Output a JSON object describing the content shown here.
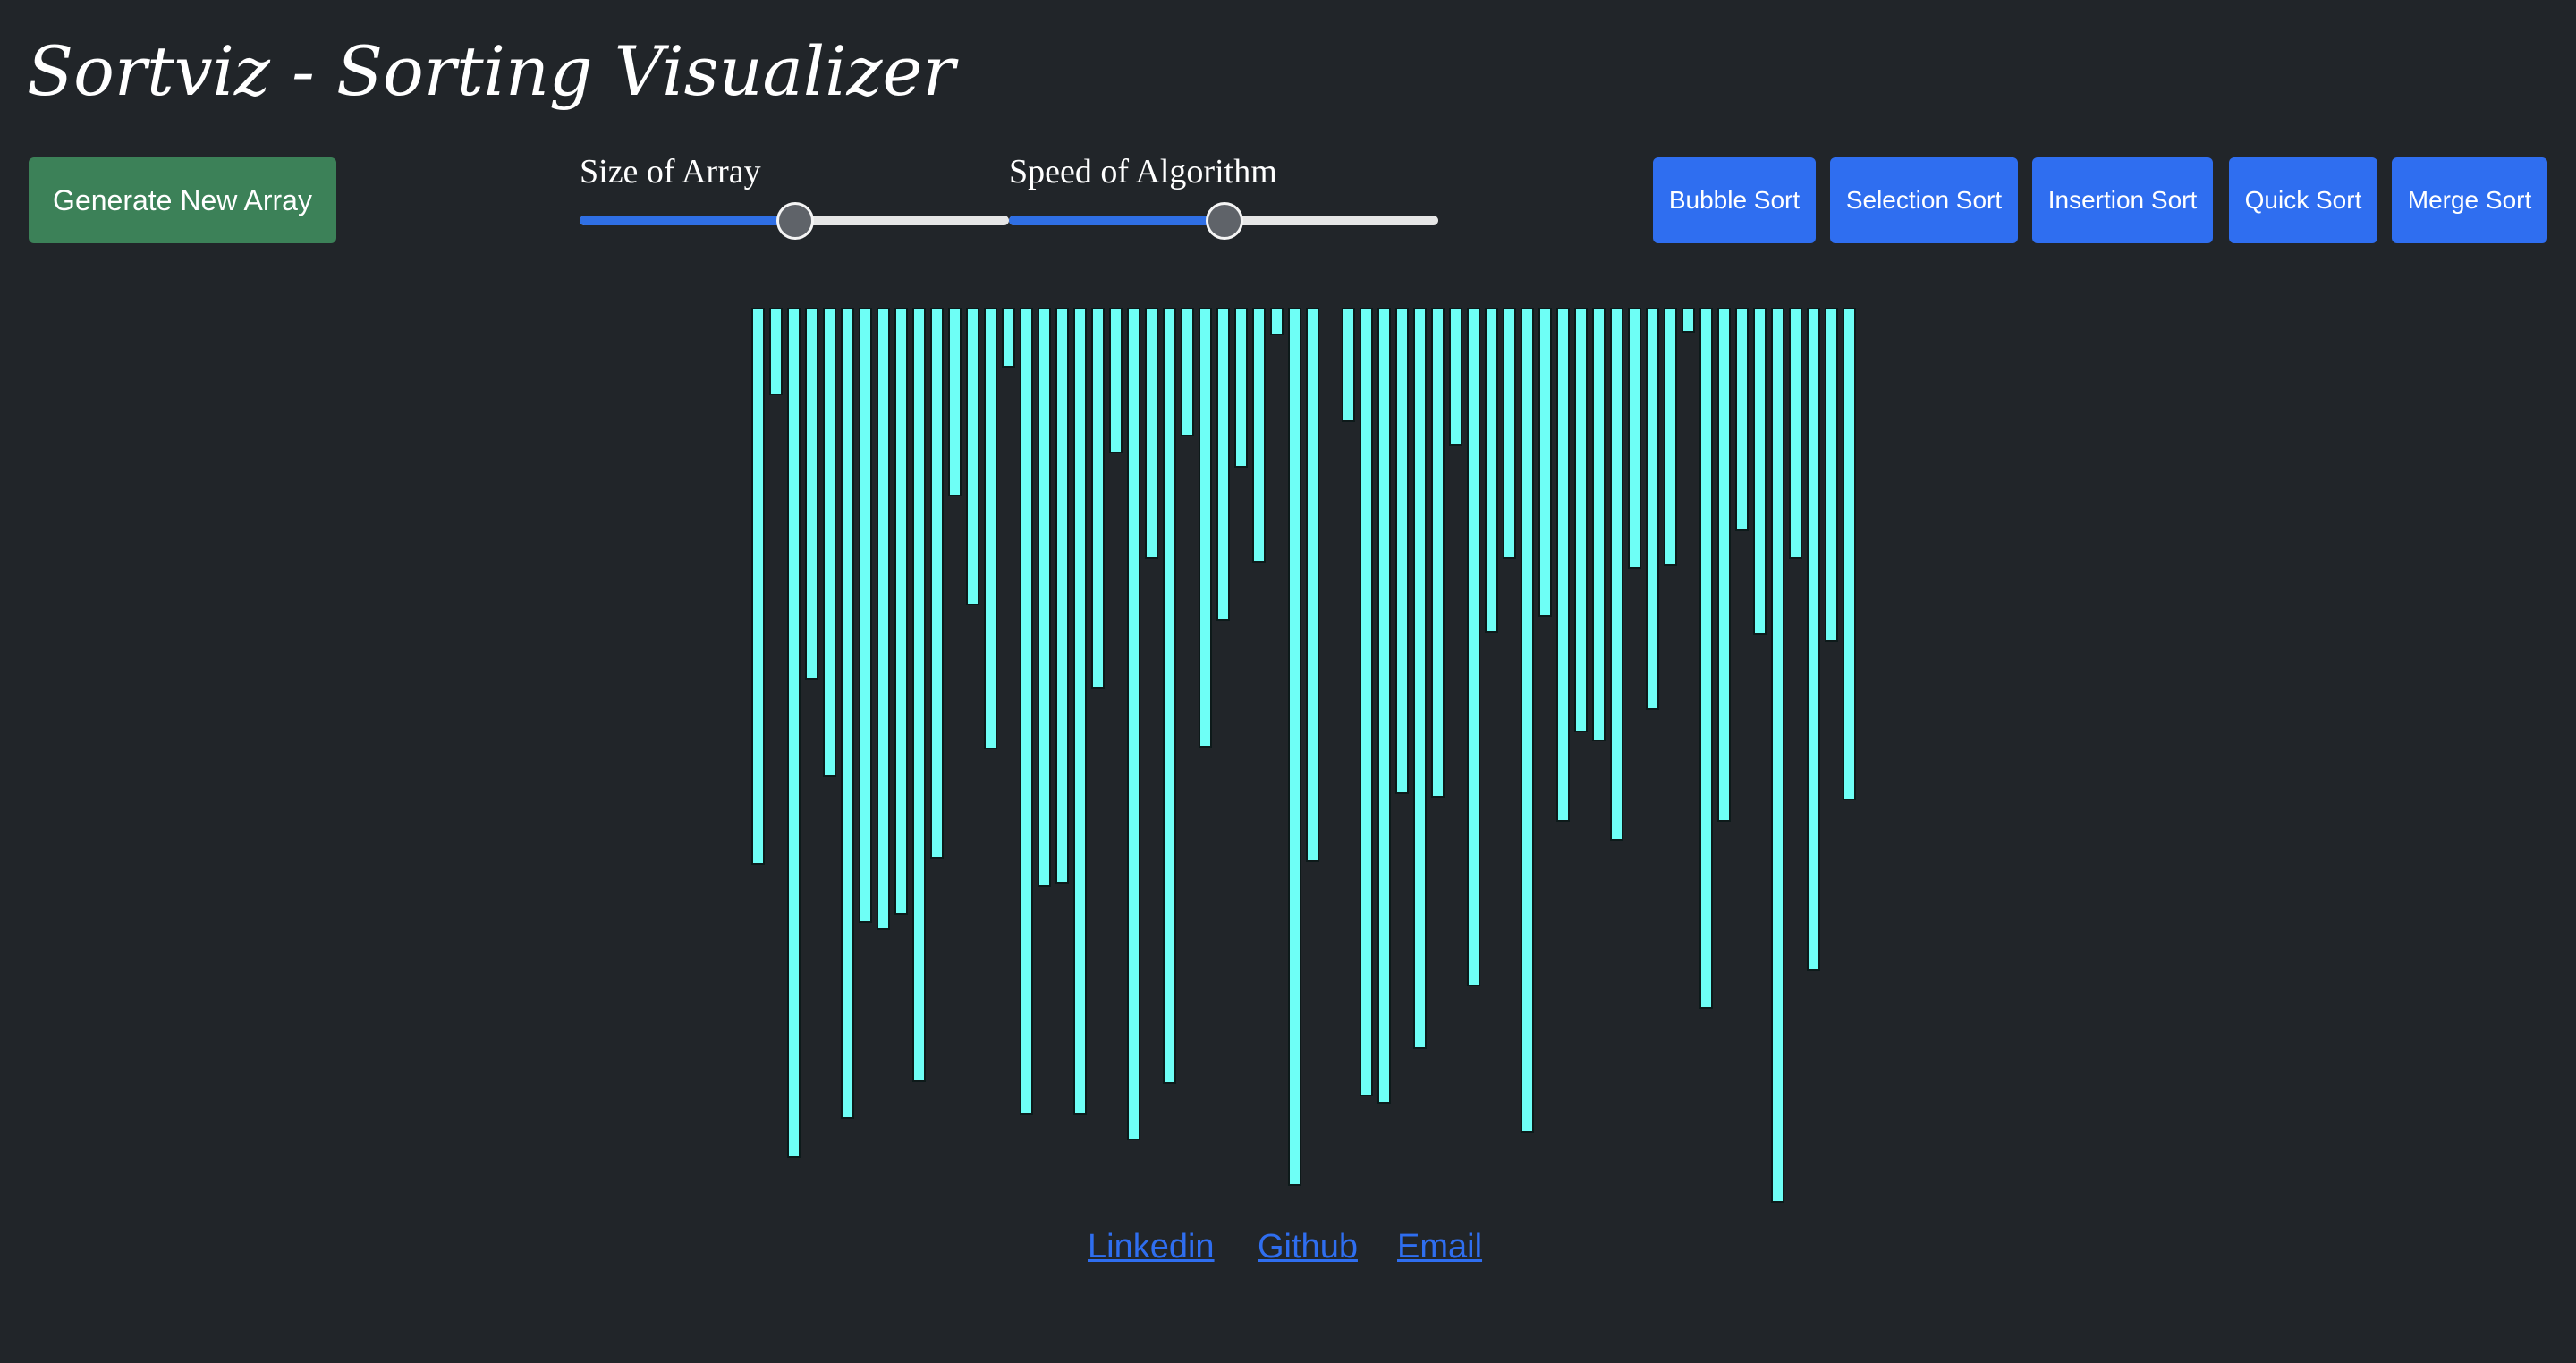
{
  "app": {
    "title": "Sortviz - Sorting Visualizer"
  },
  "controls": {
    "generate_label": "Generate New Array",
    "size_slider": {
      "label": "Size of Array",
      "value": 50
    },
    "speed_slider": {
      "label": "Speed of Algorithm",
      "value": 50
    }
  },
  "algorithms": [
    "Bubble Sort",
    "Selection Sort",
    "Insertion Sort",
    "Quick Sort",
    "Merge Sort"
  ],
  "array": {
    "values": [
      337,
      53,
      514,
      225,
      284,
      490,
      372,
      376,
      367,
      468,
      333,
      114,
      180,
      267,
      36,
      488,
      350,
      348,
      488,
      230,
      88,
      503,
      152,
      469,
      78,
      266,
      189,
      97,
      154,
      17,
      531,
      335,
      69,
      477,
      481,
      294,
      448,
      296,
      84,
      410,
      197,
      152,
      499,
      187,
      311,
      257,
      262,
      322,
      158,
      243,
      156,
      15,
      424,
      311,
      135,
      198,
      541,
      152,
      401,
      202,
      298
    ],
    "gaps_after_index": [
      31
    ]
  },
  "footer": {
    "links": [
      "Linkedin",
      "Github",
      "Email"
    ]
  },
  "colors": {
    "background": "#212529",
    "bar": "#6efff6",
    "generate_button": "#3c8158",
    "sort_button": "#2f6ef0",
    "link": "#2f6ef0"
  }
}
